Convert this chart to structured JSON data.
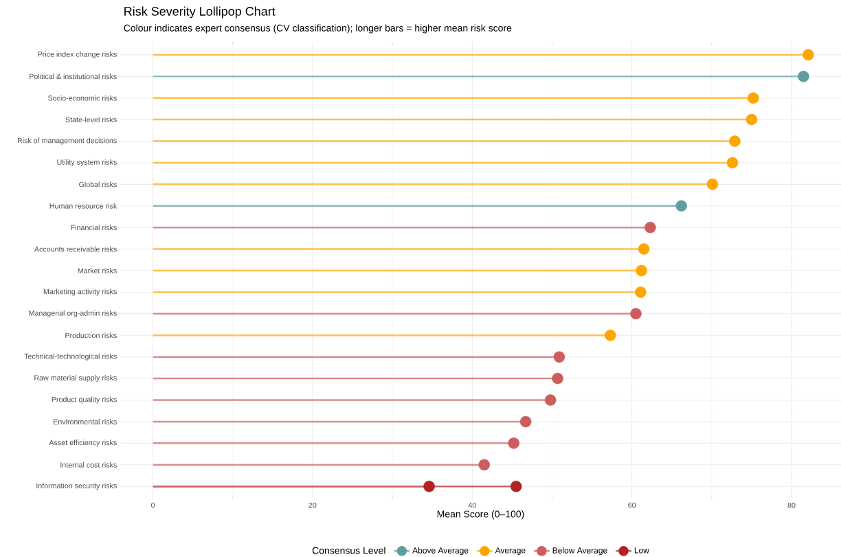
{
  "chart_data": {
    "type": "lollipop",
    "orientation": "horizontal",
    "title": "Risk Severity Lollipop Chart",
    "subtitle": "Colour indicates expert consensus (CV classification); longer bars = higher mean risk score",
    "xlabel": "Mean Score (0–100)",
    "legend_title": "Consensus Level",
    "categories": [
      "Price index change risks",
      "Political & institutional risks",
      "Socio-economic risks",
      "State-level risks",
      "Risk of management decisions",
      "Utility system risks",
      "Global risks",
      "Human resource risk",
      "Financial risks",
      "Accounts receivable risks",
      "Market risks",
      "Marketing activity risks",
      "Managerial org-admin risks",
      "Production risks",
      "Technical-technological risks",
      "Raw material supply risks",
      "Product quality risks",
      "Environmental risks",
      "Asset efficiency risks",
      "Internal cost risks",
      "Information security risks"
    ],
    "series": [
      {
        "name": "Above Average",
        "color": "#5f9ea0",
        "values": [
          null,
          81.5,
          null,
          null,
          null,
          null,
          null,
          66.2,
          null,
          null,
          null,
          null,
          null,
          null,
          null,
          null,
          null,
          null,
          null,
          null,
          null
        ]
      },
      {
        "name": "Average",
        "color": "#ffa500",
        "values": [
          82.1,
          null,
          75.2,
          75.0,
          72.9,
          72.6,
          70.1,
          null,
          null,
          61.5,
          61.2,
          61.1,
          null,
          57.3,
          null,
          null,
          null,
          null,
          null,
          null,
          null
        ]
      },
      {
        "name": "Below Average",
        "color": "#cd5c5c",
        "values": [
          null,
          null,
          null,
          null,
          null,
          null,
          null,
          null,
          62.3,
          null,
          null,
          null,
          60.5,
          null,
          50.9,
          50.7,
          49.8,
          46.7,
          45.2,
          41.5,
          null
        ]
      },
      {
        "name": "Low",
        "color": "#b22222",
        "values": [
          null,
          null,
          null,
          null,
          null,
          null,
          null,
          null,
          null,
          null,
          null,
          null,
          null,
          null,
          null,
          null,
          null,
          null,
          null,
          null,
          34.6
        ]
      },
      {
        "color": "#b22222",
        "values": [
          null,
          null,
          null,
          null,
          null,
          null,
          null,
          null,
          null,
          null,
          null,
          null,
          null,
          null,
          null,
          null,
          null,
          null,
          null,
          null,
          45.5
        ]
      }
    ],
    "xlim": [
      -4.1,
      86.2
    ],
    "xticks": [
      0,
      20,
      40,
      60,
      80
    ],
    "grid": true,
    "legend": "bottom",
    "marker": "circle"
  }
}
